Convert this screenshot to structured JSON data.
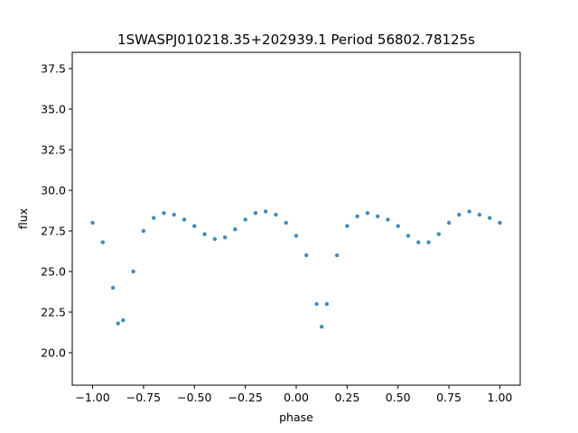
{
  "chart_data": {
    "type": "scatter",
    "title": "1SWASPJ010218.35+202939.1 Period 56802.78125s",
    "xlabel": "phase",
    "ylabel": "flux",
    "xlim": [
      -1.1,
      1.1
    ],
    "ylim": [
      18.0,
      38.5
    ],
    "xticks": [
      -1.0,
      -0.75,
      -0.5,
      -0.25,
      0.0,
      0.25,
      0.5,
      0.75,
      1.0
    ],
    "xtick_labels": [
      "−1.00",
      "−0.75",
      "−0.50",
      "−0.25",
      "0.00",
      "0.25",
      "0.50",
      "0.75",
      "1.00"
    ],
    "yticks": [
      20.0,
      22.5,
      25.0,
      27.5,
      30.0,
      32.5,
      35.0,
      37.5
    ],
    "ytick_labels": [
      "20.0",
      "22.5",
      "25.0",
      "27.5",
      "30.0",
      "32.5",
      "35.0",
      "37.5"
    ],
    "grid": false,
    "marker_color": "#1f77b4",
    "series": [
      {
        "x": [
          -1.0,
          -0.95,
          -0.9,
          -0.875,
          -0.85,
          -0.8,
          -0.75,
          -0.7,
          -0.65,
          -0.6,
          -0.55,
          -0.5,
          -0.45,
          -0.4,
          -0.35,
          -0.3,
          -0.25,
          -0.2,
          -0.15,
          -0.1,
          -0.05,
          0.0,
          0.05,
          0.1,
          0.125,
          0.15,
          0.2,
          0.25,
          0.3,
          0.35,
          0.4,
          0.45,
          0.5,
          0.55,
          0.6,
          0.65,
          0.7,
          0.75,
          0.8,
          0.85,
          0.9,
          0.95,
          1.0
        ],
        "y": [
          28.0,
          26.8,
          24.0,
          21.8,
          22.0,
          25.0,
          27.5,
          28.3,
          28.6,
          28.5,
          28.2,
          27.8,
          27.3,
          27.0,
          27.1,
          27.6,
          28.2,
          28.6,
          28.7,
          28.5,
          28.0,
          27.2,
          26.0,
          23.0,
          21.6,
          23.0,
          26.0,
          27.8,
          28.4,
          28.6,
          28.4,
          28.2,
          27.8,
          27.2,
          26.8,
          26.8,
          27.3,
          28.0,
          28.5,
          28.7,
          28.5,
          28.3,
          28.0
        ]
      }
    ]
  }
}
